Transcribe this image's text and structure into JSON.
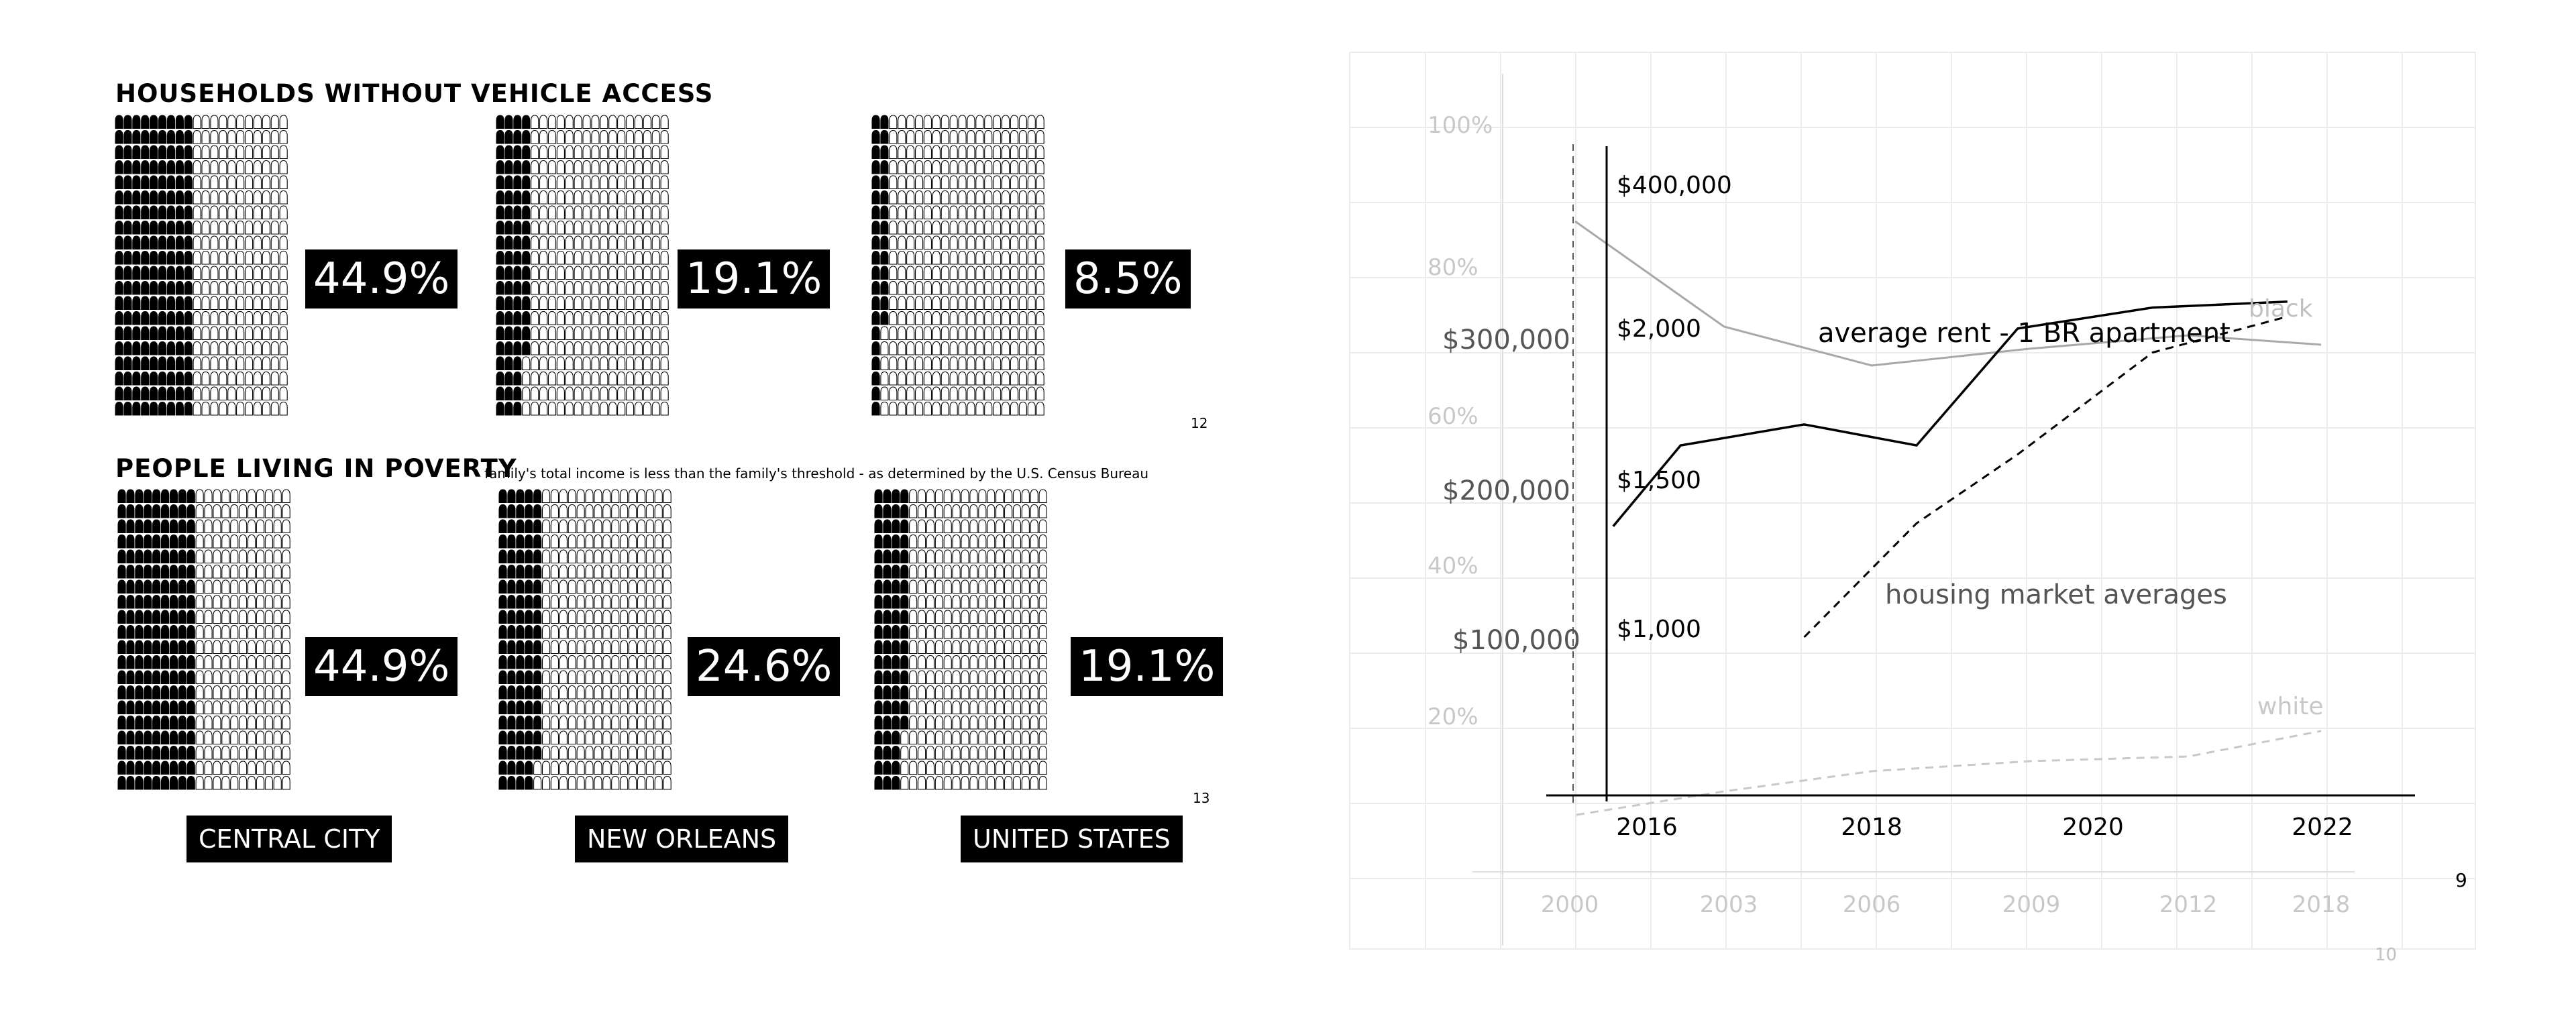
{
  "left_panel": {
    "vehicle_title": "HOUSEHOLDS WITHOUT VEHICLE ACCESS",
    "poverty_title": "PEOPLE LIVING IN POVERTY",
    "poverty_note": "family's total income is less than the family's threshold - as determined by the U.S. Census Bureau",
    "vehicle_page": "12",
    "poverty_page": "13",
    "regions": [
      "CENTRAL CITY",
      "NEW ORLEANS",
      "UNITED STATES"
    ],
    "colors": {
      "filled": "#000000",
      "empty": "#ffffff"
    }
  },
  "chart_data": [
    {
      "type": "waffle",
      "title": "HOUSEHOLDS WITHOUT VEHICLE ACCESS",
      "categories": [
        "CENTRAL CITY",
        "NEW ORLEANS",
        "UNITED STATES"
      ],
      "values": [
        44.9,
        19.1,
        8.5
      ],
      "labels": [
        "44.9%",
        "19.1%",
        "8.5%"
      ],
      "unit": "%",
      "page": "12"
    },
    {
      "type": "waffle",
      "title": "PEOPLE LIVING IN POVERTY",
      "subtitle": "family's total income is less than the family's threshold - as determined by the U.S. Census Bureau",
      "categories": [
        "CENTRAL CITY",
        "NEW ORLEANS",
        "UNITED STATES"
      ],
      "values": [
        44.9,
        24.6,
        19.1
      ],
      "labels": [
        "44.9%",
        "24.6%",
        "19.1%"
      ],
      "unit": "%",
      "page": "13"
    },
    {
      "type": "line",
      "page": "9",
      "annotations": [
        "average rent - 1 BR apartment",
        "housing market averages"
      ],
      "x_ticks": [
        "2016",
        "2018",
        "2020",
        "2022"
      ],
      "rent_ticks": [
        "$1,000",
        "$1,500",
        "$2,000"
      ],
      "price_ticks": [
        "$100,000",
        "$200,000",
        "$300,000",
        "$400,000"
      ],
      "rent_ylim": [
        750,
        2625
      ],
      "x": [
        2015.7,
        2016.3,
        2017.4,
        2018.4,
        2019.3,
        2020.5,
        2021.7
      ],
      "series": [
        {
          "values": [
            1370,
            1640,
            1710,
            1640,
            2030,
            2100,
            2120
          ],
          "style": "solid",
          "color": "#000000"
        },
        {
          "x": [
            2017.4,
            2018.4,
            2019.3,
            2020.5,
            2021.7
          ],
          "values": [
            1000,
            1380,
            1610,
            1950,
            2070
          ],
          "style": "dashed",
          "color": "#000000"
        }
      ],
      "colors": {
        "axis": "#000000",
        "grid": "#e6e6e6"
      }
    },
    {
      "type": "line",
      "page": "10",
      "series_labels": [
        "black",
        "white"
      ],
      "x_ticks": [
        "2000",
        "2003",
        "2006",
        "2009",
        "2012",
        "2018"
      ],
      "y_ticks": [
        "20%",
        "40%",
        "60%",
        "80%",
        "100%"
      ],
      "ylim": [
        0,
        100
      ],
      "series": [
        {
          "name": "black",
          "x": [
            2000,
            2003,
            2006,
            2009,
            2012,
            2018
          ],
          "values": [
            86,
            64,
            59,
            61,
            63,
            61
          ],
          "color": "#a8a8a8",
          "style": "solid"
        },
        {
          "name": "white",
          "x": [
            2000,
            2003,
            2006,
            2009,
            2012,
            2018
          ],
          "values": [
            -2,
            1,
            3.5,
            4.5,
            5,
            8.5
          ],
          "color": "#c8c8c8",
          "style": "dashed"
        }
      ],
      "colors": {
        "label": "#c0c0c0"
      }
    }
  ]
}
